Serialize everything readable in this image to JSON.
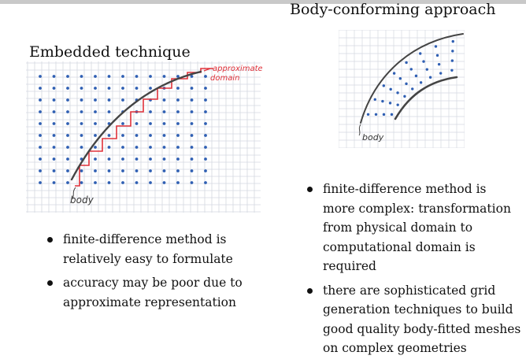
{
  "left": {
    "title": "Embedded technique",
    "annotation_approx_line1": "approximate",
    "annotation_approx_line2": "domain",
    "annotation_body": "body",
    "bullets": [
      "finite-difference method is relatively easy to formulate",
      "accuracy may be poor due to approximate representation"
    ]
  },
  "right": {
    "title": "Body-conforming approach",
    "annotation_body": "body",
    "bullets": [
      "finite-difference method is more complex: transformation from physical domain to computational domain is required",
      "there are sophisticated grid generation techniques to build good quality body-fitted meshes on complex geometries"
    ]
  },
  "colors": {
    "grid": "#d4d8e0",
    "points": "#2f5fb3",
    "curve": "#444444",
    "approx": "#e0323a"
  }
}
